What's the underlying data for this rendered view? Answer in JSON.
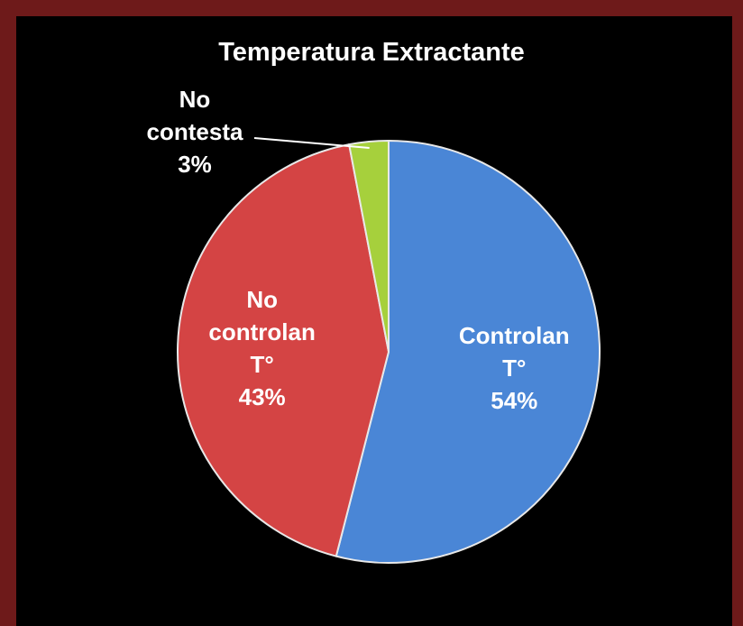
{
  "chart_data": {
    "type": "pie",
    "title": "Temperatura Extractante",
    "categories": [
      "Controlan T°",
      "No controlan T°",
      "No contesta"
    ],
    "values": [
      54,
      43,
      3
    ],
    "value_labels": [
      "54%",
      "43%",
      "3%"
    ],
    "colors": [
      "#4a86d6",
      "#d44444",
      "#a6d03c"
    ]
  }
}
